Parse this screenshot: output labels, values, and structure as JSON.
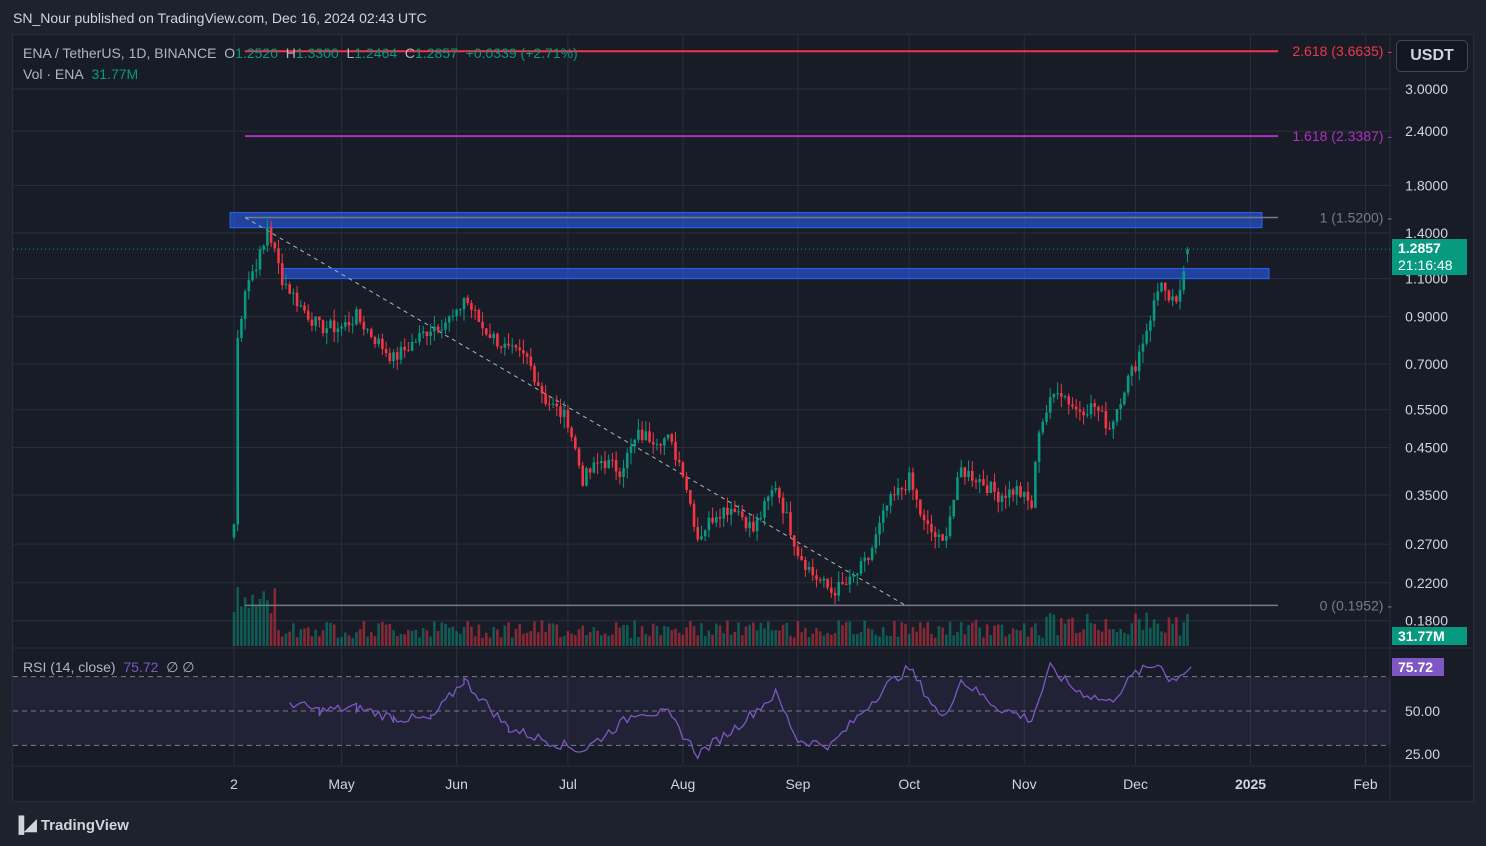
{
  "header": {
    "published": "SN_Nour published on TradingView.com, Dec 16, 2024 02:43 UTC"
  },
  "legend": {
    "symbol": "ENA / TetherUS, 1D, BINANCE",
    "o_label": "O",
    "o": "1.2520",
    "h_label": "H",
    "h": "1.3300",
    "l_label": "L",
    "l": "1.2464",
    "c_label": "C",
    "c": "1.2857",
    "change": "+0.0339 (+2.71%)",
    "vol_label": "Vol · ENA",
    "vol": "31.77M"
  },
  "currency": "USDT",
  "rsi": {
    "label": "RSI (14, close)",
    "value": "75.72",
    "extra": "∅ ∅"
  },
  "footer": {
    "logo": "TradingView"
  },
  "colors": {
    "up": "#089981",
    "down": "#f23645",
    "fib_2618": "#f23645",
    "fib_1618": "#b02fbf",
    "fib_1": "#787b86",
    "zone": "#2962ff",
    "rsi": "#7e57c2"
  },
  "chart_data": {
    "type": "candlestick",
    "scale": "log",
    "price_ticks": [
      "3.0000",
      "2.4000",
      "1.8000",
      "1.4000",
      "1.1000",
      "0.9000",
      "0.7000",
      "0.5500",
      "0.4500",
      "0.3500",
      "0.2700",
      "0.2200",
      "0.1800"
    ],
    "x_ticks": [
      "2",
      "May",
      "Jun",
      "Jul",
      "Aug",
      "Sep",
      "Oct",
      "Nov",
      "Dec",
      "2025",
      "Feb"
    ],
    "last_price": "1.2857",
    "countdown": "21:16:48",
    "volume_last": "31.77M",
    "fib_levels": [
      {
        "label": "2.618 (3.6635)",
        "price": 3.6635
      },
      {
        "label": "1.618 (2.3387)",
        "price": 2.3387
      },
      {
        "label": "1 (1.5200)",
        "price": 1.52
      },
      {
        "label": "0 (0.1952)",
        "price": 0.1952
      }
    ],
    "zones": [
      {
        "from": 1.44,
        "to": 1.56
      },
      {
        "from": 1.1,
        "to": 1.16
      }
    ],
    "trendline": [
      {
        "date": "2024-04-05",
        "price": 1.52
      },
      {
        "date": "2024-09-30",
        "price": 0.1952
      }
    ],
    "close_path": [
      [
        "2024-04-02",
        0.3
      ],
      [
        "2024-04-03",
        0.8
      ],
      [
        "2024-04-05",
        1.05
      ],
      [
        "2024-04-10",
        1.3
      ],
      [
        "2024-04-11",
        1.45
      ],
      [
        "2024-04-15",
        1.1
      ],
      [
        "2024-04-20",
        0.95
      ],
      [
        "2024-04-25",
        0.85
      ],
      [
        "2024-05-01",
        0.85
      ],
      [
        "2024-05-05",
        0.9
      ],
      [
        "2024-05-10",
        0.8
      ],
      [
        "2024-05-15",
        0.72
      ],
      [
        "2024-05-20",
        0.78
      ],
      [
        "2024-05-25",
        0.85
      ],
      [
        "2024-06-01",
        0.9
      ],
      [
        "2024-06-03",
        1.0
      ],
      [
        "2024-06-08",
        0.85
      ],
      [
        "2024-06-15",
        0.75
      ],
      [
        "2024-06-20",
        0.72
      ],
      [
        "2024-06-25",
        0.58
      ],
      [
        "2024-07-01",
        0.52
      ],
      [
        "2024-07-05",
        0.38
      ],
      [
        "2024-07-10",
        0.42
      ],
      [
        "2024-07-15",
        0.4
      ],
      [
        "2024-07-20",
        0.48
      ],
      [
        "2024-07-28",
        0.47
      ],
      [
        "2024-08-01",
        0.4
      ],
      [
        "2024-08-05",
        0.28
      ],
      [
        "2024-08-10",
        0.32
      ],
      [
        "2024-08-15",
        0.33
      ],
      [
        "2024-08-20",
        0.29
      ],
      [
        "2024-08-26",
        0.37
      ],
      [
        "2024-09-01",
        0.26
      ],
      [
        "2024-09-05",
        0.23
      ],
      [
        "2024-09-10",
        0.21
      ],
      [
        "2024-09-15",
        0.22
      ],
      [
        "2024-09-20",
        0.25
      ],
      [
        "2024-09-25",
        0.33
      ],
      [
        "2024-10-01",
        0.38
      ],
      [
        "2024-10-05",
        0.3
      ],
      [
        "2024-10-10",
        0.27
      ],
      [
        "2024-10-15",
        0.4
      ],
      [
        "2024-10-20",
        0.38
      ],
      [
        "2024-10-25",
        0.35
      ],
      [
        "2024-10-30",
        0.36
      ],
      [
        "2024-11-03",
        0.33
      ],
      [
        "2024-11-05",
        0.5
      ],
      [
        "2024-11-10",
        0.62
      ],
      [
        "2024-11-15",
        0.55
      ],
      [
        "2024-11-20",
        0.56
      ],
      [
        "2024-11-24",
        0.5
      ],
      [
        "2024-11-28",
        0.62
      ],
      [
        "2024-12-01",
        0.7
      ],
      [
        "2024-12-05",
        0.9
      ],
      [
        "2024-12-08",
        1.1
      ],
      [
        "2024-12-10",
        0.95
      ],
      [
        "2024-12-13",
        1.0
      ],
      [
        "2024-12-15",
        1.25
      ],
      [
        "2024-12-16",
        1.2857
      ]
    ],
    "rsi_ticks": [
      "50.00",
      "25.00"
    ],
    "rsi_bands": [
      30,
      50,
      70
    ],
    "rsi_path": [
      [
        "2024-04-17",
        55
      ],
      [
        "2024-04-25",
        50
      ],
      [
        "2024-05-05",
        52
      ],
      [
        "2024-05-15",
        46
      ],
      [
        "2024-05-25",
        45
      ],
      [
        "2024-06-03",
        68
      ],
      [
        "2024-06-15",
        40
      ],
      [
        "2024-06-25",
        33
      ],
      [
        "2024-07-05",
        27
      ],
      [
        "2024-07-20",
        50
      ],
      [
        "2024-07-28",
        48
      ],
      [
        "2024-08-05",
        25
      ],
      [
        "2024-08-15",
        40
      ],
      [
        "2024-08-26",
        60
      ],
      [
        "2024-09-01",
        33
      ],
      [
        "2024-09-10",
        30
      ],
      [
        "2024-09-25",
        65
      ],
      [
        "2024-10-01",
        75
      ],
      [
        "2024-10-10",
        45
      ],
      [
        "2024-10-15",
        68
      ],
      [
        "2024-10-25",
        52
      ],
      [
        "2024-11-03",
        45
      ],
      [
        "2024-11-08",
        75
      ],
      [
        "2024-11-15",
        62
      ],
      [
        "2024-11-24",
        55
      ],
      [
        "2024-12-01",
        72
      ],
      [
        "2024-12-08",
        78
      ],
      [
        "2024-12-10",
        67
      ],
      [
        "2024-12-16",
        75.72
      ]
    ]
  }
}
